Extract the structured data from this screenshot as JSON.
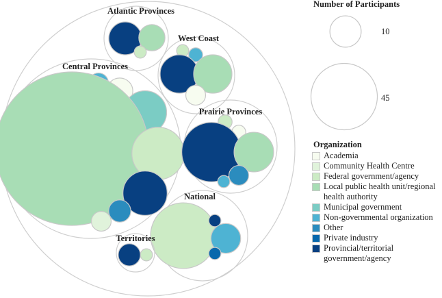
{
  "chart_data": {
    "type": "packed-bubble",
    "legend_title": "Organization",
    "size_legend": {
      "title": "Number of Participants",
      "entries": [
        {
          "label": "10",
          "value": 10
        },
        {
          "label": "45",
          "value": 45
        }
      ]
    },
    "categories": [
      {
        "name": "Academia",
        "color": "#f7fcf0"
      },
      {
        "name": "Community Health Centre",
        "color": "#e0f3db"
      },
      {
        "name": "Federal government/agency",
        "color": "#ccebc5"
      },
      {
        "name": "Local public health unit/regional health authority",
        "color": "#a8ddb5"
      },
      {
        "name": "Municipal government",
        "color": "#7bccc4"
      },
      {
        "name": "Non-governmental organization",
        "color": "#4eb3d3"
      },
      {
        "name": "Other",
        "color": "#2b8cbe"
      },
      {
        "name": "Private industry",
        "color": "#0868ac"
      },
      {
        "name": "Provincial/territorial government/agency",
        "color": "#084081"
      }
    ],
    "groups": [
      {
        "name": "Atlantic Provinces",
        "items": [
          {
            "category": "Provincial/territorial government/agency",
            "value": 11
          },
          {
            "category": "Local public health unit/regional health authority",
            "value": 7
          },
          {
            "category": "Federal government/agency",
            "value": 1.5
          }
        ]
      },
      {
        "name": "West Coast",
        "items": [
          {
            "category": "Federal government/agency",
            "value": 1.5
          },
          {
            "category": "Non-governmental organization",
            "value": 2
          },
          {
            "category": "Provincial/territorial government/agency",
            "value": 15
          },
          {
            "category": "Local public health unit/regional health authority",
            "value": 15
          },
          {
            "category": "Academia",
            "value": 4
          }
        ]
      },
      {
        "name": "Central Provinces",
        "items": [
          {
            "category": "Non-governmental organization",
            "value": 4
          },
          {
            "category": "Academia",
            "value": 7
          },
          {
            "category": "Municipal government",
            "value": 19
          },
          {
            "category": "Local public health unit/regional health authority",
            "value": 240
          },
          {
            "category": "Federal government/agency",
            "value": 28
          },
          {
            "category": "Provincial/territorial government/agency",
            "value": 20
          },
          {
            "category": "Other",
            "value": 5
          },
          {
            "category": "Community Health Centre",
            "value": 4
          }
        ]
      },
      {
        "name": "Prairie Provinces",
        "items": [
          {
            "category": "Federal government/agency",
            "value": 2
          },
          {
            "category": "Academia",
            "value": 2
          },
          {
            "category": "Provincial/territorial government/agency",
            "value": 36
          },
          {
            "category": "Local public health unit/regional health authority",
            "value": 16
          },
          {
            "category": "Other",
            "value": 4
          },
          {
            "category": "Non-governmental organization",
            "value": 1.5
          }
        ]
      },
      {
        "name": "National",
        "items": [
          {
            "category": "Federal government/agency",
            "value": 44
          },
          {
            "category": "Provincial/territorial government/agency",
            "value": 1.5
          },
          {
            "category": "Non-governmental organization",
            "value": 9
          },
          {
            "category": "Private industry",
            "value": 1.5
          }
        ]
      },
      {
        "name": "Territories",
        "items": [
          {
            "category": "Provincial/territorial government/agency",
            "value": 5
          },
          {
            "category": "Federal government/agency",
            "value": 1.5
          }
        ]
      }
    ]
  }
}
